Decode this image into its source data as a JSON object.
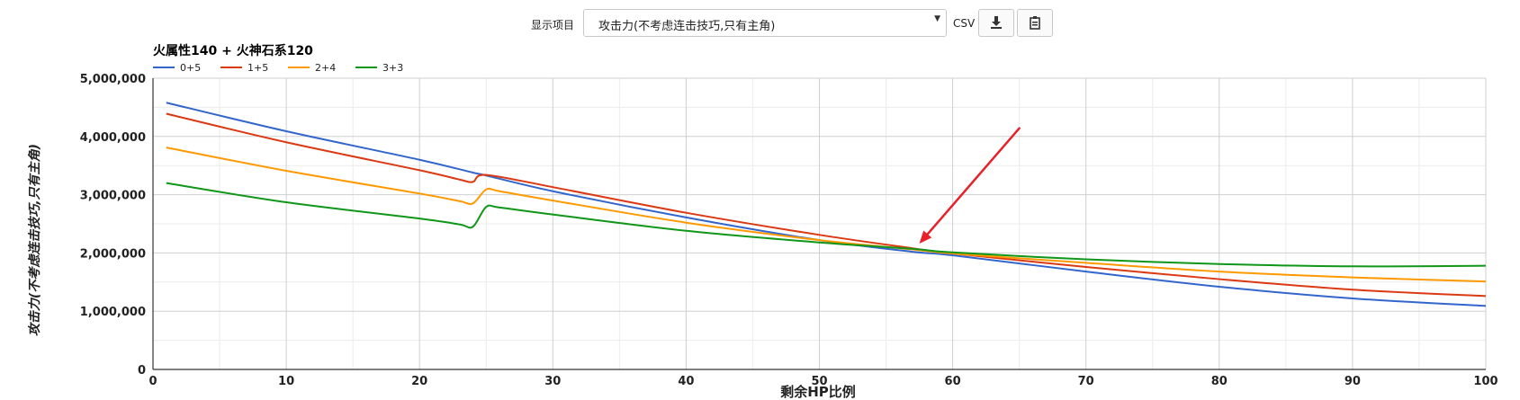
{
  "toolbar": {
    "label": "显示项目",
    "select_value": "攻击力(不考虑连击技巧,只有主角)",
    "csv_label": "CSV",
    "download_icon": "download-icon",
    "clipboard_icon": "clipboard-icon"
  },
  "chart_data": {
    "type": "line",
    "title": "火属性140 + 火神石系120",
    "xlabel": "剩余HP比例",
    "ylabel": "攻击力(不考虑连击技巧,只有主角)",
    "xlim": [
      0,
      100
    ],
    "ylim": [
      0,
      5000000
    ],
    "x_ticks": [
      0,
      10,
      20,
      30,
      40,
      50,
      60,
      70,
      80,
      90,
      100
    ],
    "x_tick_labels": [
      "0",
      "10",
      "20",
      "30",
      "40",
      "50",
      "60",
      "70",
      "80",
      "90",
      "100"
    ],
    "y_ticks": [
      0,
      1000000,
      2000000,
      3000000,
      4000000,
      5000000
    ],
    "y_tick_labels": [
      "0",
      "1,000,000",
      "2,000,000",
      "3,000,000",
      "4,000,000",
      "5,000,000"
    ],
    "grid": true,
    "legend_position": "top-left",
    "series": [
      {
        "name": "0+5",
        "color": "#3366cc",
        "points": [
          [
            1,
            4580000
          ],
          [
            10,
            4090000
          ],
          [
            20,
            3600000
          ],
          [
            24,
            3380000
          ],
          [
            25,
            3330000
          ],
          [
            30,
            3060000
          ],
          [
            40,
            2610000
          ],
          [
            50,
            2220000
          ],
          [
            57,
            2020000
          ],
          [
            60,
            1960000
          ],
          [
            70,
            1680000
          ],
          [
            80,
            1420000
          ],
          [
            90,
            1220000
          ],
          [
            100,
            1090000
          ]
        ]
      },
      {
        "name": "1+5",
        "color": "#dc3912",
        "points": [
          [
            1,
            4390000
          ],
          [
            10,
            3900000
          ],
          [
            20,
            3420000
          ],
          [
            23,
            3260000
          ],
          [
            24,
            3220000
          ],
          [
            25,
            3340000
          ],
          [
            30,
            3130000
          ],
          [
            40,
            2690000
          ],
          [
            50,
            2310000
          ],
          [
            57,
            2080000
          ],
          [
            60,
            1990000
          ],
          [
            70,
            1760000
          ],
          [
            80,
            1550000
          ],
          [
            90,
            1370000
          ],
          [
            100,
            1260000
          ]
        ]
      },
      {
        "name": "2+4",
        "color": "#ff9900",
        "points": [
          [
            1,
            3810000
          ],
          [
            10,
            3410000
          ],
          [
            20,
            3020000
          ],
          [
            23,
            2890000
          ],
          [
            24,
            2850000
          ],
          [
            25,
            3090000
          ],
          [
            26,
            3060000
          ],
          [
            30,
            2900000
          ],
          [
            40,
            2520000
          ],
          [
            50,
            2220000
          ],
          [
            57,
            2060000
          ],
          [
            60,
            1990000
          ],
          [
            70,
            1830000
          ],
          [
            80,
            1680000
          ],
          [
            90,
            1580000
          ],
          [
            100,
            1510000
          ]
        ]
      },
      {
        "name": "3+3",
        "color": "#109618",
        "points": [
          [
            1,
            3200000
          ],
          [
            10,
            2870000
          ],
          [
            20,
            2590000
          ],
          [
            23,
            2490000
          ],
          [
            24,
            2450000
          ],
          [
            25,
            2790000
          ],
          [
            26,
            2780000
          ],
          [
            30,
            2660000
          ],
          [
            40,
            2380000
          ],
          [
            50,
            2180000
          ],
          [
            57,
            2070000
          ],
          [
            60,
            2010000
          ],
          [
            70,
            1890000
          ],
          [
            80,
            1810000
          ],
          [
            90,
            1770000
          ],
          [
            100,
            1780000
          ]
        ]
      }
    ],
    "annotations": [
      {
        "type": "arrow",
        "color": "#e8202a",
        "from": [
          65,
          4140000
        ],
        "to": [
          57.5,
          2160000
        ]
      }
    ]
  }
}
